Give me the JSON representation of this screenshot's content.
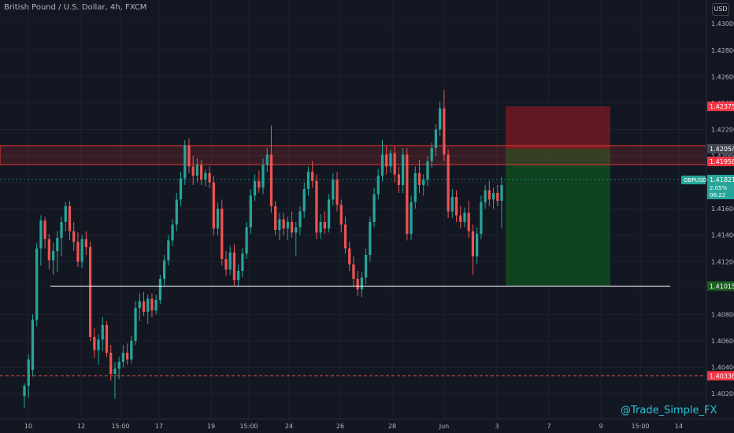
{
  "symbol": {
    "title": "British Pound / U.S. Dollar, 4h, FXCM",
    "ticker": "GBPUSD",
    "current_price": "1.41821",
    "change_percent": "2.05%",
    "countdown": "06:22"
  },
  "currency_button": "USD",
  "watermark": "@Trade_Simple_FX",
  "colors": {
    "background": "#131722",
    "up": "#26a69a",
    "down": "#ef5350",
    "axis_text": "#b2b5be",
    "support_line": "#ffffff",
    "resistance_zone": "#e53935",
    "stop_zone": "#7e1a23",
    "target_zone": "#0f4a1e"
  },
  "price_axis": {
    "ticks": [
      "1.43000",
      "1.42800",
      "1.42600",
      "1.42400",
      "1.42200",
      "1.42000",
      "1.41800",
      "1.41600",
      "1.41400",
      "1.41200",
      "1.41000",
      "1.40800",
      "1.40600",
      "1.40400",
      "1.40200"
    ]
  },
  "time_axis": {
    "ticks": [
      "10",
      "12",
      "15:00",
      "17",
      "19",
      "15:00",
      "24",
      "26",
      "28",
      "Jun",
      "3",
      "7",
      "9",
      "15:00",
      "14"
    ]
  },
  "price_labels": [
    {
      "value": "1.42375",
      "type": "stop"
    },
    {
      "value": "1.42054",
      "type": "zone-top"
    },
    {
      "value": "1.41958",
      "type": "zone-bottom"
    },
    {
      "value": "1.41015",
      "type": "target"
    },
    {
      "value": "1.40336",
      "type": "low"
    }
  ],
  "chart_data": {
    "type": "candlestick",
    "ylim": [
      1.4001,
      1.4318
    ],
    "candles": [
      [
        1.4018,
        1.4028,
        1.4009,
        1.4026
      ],
      [
        1.4026,
        1.405,
        1.4017,
        1.4046
      ],
      [
        1.4038,
        1.408,
        1.4033,
        1.4076
      ],
      [
        1.4076,
        1.4134,
        1.4071,
        1.413
      ],
      [
        1.413,
        1.4155,
        1.4117,
        1.4151
      ],
      [
        1.4151,
        1.4154,
        1.413,
        1.4137
      ],
      [
        1.4137,
        1.4141,
        1.4114,
        1.4121
      ],
      [
        1.4121,
        1.4134,
        1.411,
        1.4128
      ],
      [
        1.4128,
        1.4143,
        1.4112,
        1.4138
      ],
      [
        1.4138,
        1.4154,
        1.4124,
        1.415
      ],
      [
        1.415,
        1.4165,
        1.4143,
        1.4162
      ],
      [
        1.4162,
        1.4166,
        1.4136,
        1.4143
      ],
      [
        1.4143,
        1.415,
        1.4128,
        1.4135
      ],
      [
        1.4135,
        1.4142,
        1.4116,
        1.412
      ],
      [
        1.412,
        1.414,
        1.4115,
        1.4137
      ],
      [
        1.4137,
        1.4143,
        1.4125,
        1.4131
      ],
      [
        1.4131,
        1.4135,
        1.406,
        1.4063
      ],
      [
        1.4063,
        1.407,
        1.4047,
        1.4053
      ],
      [
        1.4053,
        1.4065,
        1.4042,
        1.4061
      ],
      [
        1.4061,
        1.4078,
        1.4052,
        1.4072
      ],
      [
        1.4072,
        1.4075,
        1.4048,
        1.4051
      ],
      [
        1.4051,
        1.4057,
        1.403,
        1.4035
      ],
      [
        1.4035,
        1.4044,
        1.4016,
        1.4039
      ],
      [
        1.4039,
        1.4048,
        1.4031,
        1.4044
      ],
      [
        1.4044,
        1.4057,
        1.404,
        1.4051
      ],
      [
        1.4051,
        1.4058,
        1.4042,
        1.4046
      ],
      [
        1.4046,
        1.4064,
        1.4043,
        1.406
      ],
      [
        1.406,
        1.409,
        1.4057,
        1.4085
      ],
      [
        1.4085,
        1.4096,
        1.4075,
        1.409
      ],
      [
        1.409,
        1.4097,
        1.4079,
        1.4082
      ],
      [
        1.4082,
        1.4095,
        1.4073,
        1.4092
      ],
      [
        1.4092,
        1.4096,
        1.4078,
        1.4083
      ],
      [
        1.4083,
        1.4095,
        1.408,
        1.4091
      ],
      [
        1.4091,
        1.411,
        1.4088,
        1.4107
      ],
      [
        1.4107,
        1.4125,
        1.4102,
        1.4121
      ],
      [
        1.4121,
        1.414,
        1.4117,
        1.4136
      ],
      [
        1.4136,
        1.4152,
        1.4132,
        1.4148
      ],
      [
        1.4148,
        1.4172,
        1.4143,
        1.4167
      ],
      [
        1.4167,
        1.4188,
        1.4162,
        1.4183
      ],
      [
        1.4183,
        1.4212,
        1.4178,
        1.4208
      ],
      [
        1.4208,
        1.4213,
        1.4187,
        1.4192
      ],
      [
        1.4192,
        1.42,
        1.4178,
        1.4185
      ],
      [
        1.4185,
        1.4198,
        1.418,
        1.4193
      ],
      [
        1.4193,
        1.4197,
        1.4178,
        1.4182
      ],
      [
        1.4182,
        1.419,
        1.4177,
        1.4187
      ],
      [
        1.4187,
        1.4192,
        1.4176,
        1.418
      ],
      [
        1.418,
        1.4185,
        1.414,
        1.4145
      ],
      [
        1.4145,
        1.4165,
        1.414,
        1.416
      ],
      [
        1.416,
        1.4167,
        1.4117,
        1.4122
      ],
      [
        1.4122,
        1.4128,
        1.4109,
        1.4114
      ],
      [
        1.4114,
        1.4132,
        1.411,
        1.4127
      ],
      [
        1.4127,
        1.4133,
        1.4102,
        1.4106
      ],
      [
        1.4106,
        1.4118,
        1.4101,
        1.4113
      ],
      [
        1.4113,
        1.413,
        1.4108,
        1.4126
      ],
      [
        1.4126,
        1.415,
        1.4122,
        1.4146
      ],
      [
        1.4146,
        1.4175,
        1.4141,
        1.417
      ],
      [
        1.417,
        1.4186,
        1.4166,
        1.4181
      ],
      [
        1.4181,
        1.4189,
        1.4172,
        1.4176
      ],
      [
        1.4176,
        1.4198,
        1.4171,
        1.4193
      ],
      [
        1.4193,
        1.4206,
        1.4188,
        1.4201
      ],
      [
        1.4201,
        1.4223,
        1.4157,
        1.4162
      ],
      [
        1.4162,
        1.4166,
        1.414,
        1.4144
      ],
      [
        1.4144,
        1.4157,
        1.4136,
        1.4152
      ],
      [
        1.4152,
        1.4157,
        1.414,
        1.4145
      ],
      [
        1.4145,
        1.4154,
        1.4136,
        1.415
      ],
      [
        1.415,
        1.4158,
        1.4138,
        1.4142
      ],
      [
        1.4142,
        1.415,
        1.4124,
        1.4146
      ],
      [
        1.4146,
        1.4162,
        1.414,
        1.4158
      ],
      [
        1.4158,
        1.418,
        1.4153,
        1.4175
      ],
      [
        1.4175,
        1.4192,
        1.417,
        1.4188
      ],
      [
        1.4188,
        1.4196,
        1.4176,
        1.4181
      ],
      [
        1.4181,
        1.4186,
        1.4137,
        1.4142
      ],
      [
        1.4142,
        1.4156,
        1.4137,
        1.415
      ],
      [
        1.415,
        1.4158,
        1.4141,
        1.4145
      ],
      [
        1.4145,
        1.4171,
        1.4142,
        1.4167
      ],
      [
        1.4167,
        1.4187,
        1.4162,
        1.4182
      ],
      [
        1.4182,
        1.4188,
        1.4158,
        1.4163
      ],
      [
        1.4163,
        1.4167,
        1.4142,
        1.4148
      ],
      [
        1.4148,
        1.4154,
        1.4126,
        1.413
      ],
      [
        1.413,
        1.4135,
        1.4113,
        1.4118
      ],
      [
        1.4118,
        1.4124,
        1.4101,
        1.4107
      ],
      [
        1.4107,
        1.4113,
        1.4094,
        1.4099
      ],
      [
        1.4099,
        1.4112,
        1.4093,
        1.4108
      ],
      [
        1.4108,
        1.413,
        1.4103,
        1.4125
      ],
      [
        1.4125,
        1.4154,
        1.412,
        1.415
      ],
      [
        1.415,
        1.4176,
        1.4146,
        1.4171
      ],
      [
        1.4171,
        1.419,
        1.4167,
        1.4185
      ],
      [
        1.4185,
        1.4212,
        1.4181,
        1.4201
      ],
      [
        1.4201,
        1.4208,
        1.4186,
        1.4192
      ],
      [
        1.4192,
        1.4205,
        1.4187,
        1.4202
      ],
      [
        1.4202,
        1.4207,
        1.418,
        1.4186
      ],
      [
        1.4186,
        1.4192,
        1.4172,
        1.4178
      ],
      [
        1.4178,
        1.4206,
        1.4172,
        1.4201
      ],
      [
        1.4201,
        1.4206,
        1.4136,
        1.4141
      ],
      [
        1.4141,
        1.417,
        1.4136,
        1.4165
      ],
      [
        1.4165,
        1.4192,
        1.416,
        1.4187
      ],
      [
        1.4187,
        1.4197,
        1.4172,
        1.4178
      ],
      [
        1.4178,
        1.4186,
        1.417,
        1.4182
      ],
      [
        1.4182,
        1.42,
        1.4177,
        1.4196
      ],
      [
        1.4196,
        1.421,
        1.4191,
        1.4206
      ],
      [
        1.4206,
        1.4224,
        1.42,
        1.422
      ],
      [
        1.422,
        1.4241,
        1.4215,
        1.4236
      ],
      [
        1.4236,
        1.425,
        1.4196,
        1.4201
      ],
      [
        1.4201,
        1.4205,
        1.4153,
        1.4158
      ],
      [
        1.4158,
        1.4175,
        1.4153,
        1.4169
      ],
      [
        1.4169,
        1.4174,
        1.415,
        1.4155
      ],
      [
        1.4155,
        1.4162,
        1.4145,
        1.415
      ],
      [
        1.415,
        1.4161,
        1.4146,
        1.4157
      ],
      [
        1.4157,
        1.4166,
        1.4138,
        1.4143
      ],
      [
        1.4143,
        1.4148,
        1.411,
        1.4124
      ],
      [
        1.4124,
        1.4146,
        1.4118,
        1.4141
      ],
      [
        1.4141,
        1.417,
        1.4137,
        1.4165
      ],
      [
        1.4165,
        1.4178,
        1.416,
        1.4174
      ],
      [
        1.4174,
        1.4181,
        1.4162,
        1.4167
      ],
      [
        1.4167,
        1.4176,
        1.416,
        1.4172
      ],
      [
        1.4172,
        1.4178,
        1.4162,
        1.4166
      ],
      [
        1.4166,
        1.4184,
        1.4145,
        1.4178
      ]
    ],
    "levels": [
      {
        "name": "Support",
        "price": 1.41015
      },
      {
        "name": "Low",
        "price": 1.40336
      },
      {
        "name": "Current",
        "price": 1.41821
      },
      {
        "name": "Resistance zone",
        "from": 1.41958,
        "to": 1.42054
      },
      {
        "name": "Stop zone",
        "from": 1.42054,
        "to": 1.42375
      },
      {
        "name": "Target zone",
        "from": 1.41015,
        "to": 1.42054
      }
    ]
  }
}
